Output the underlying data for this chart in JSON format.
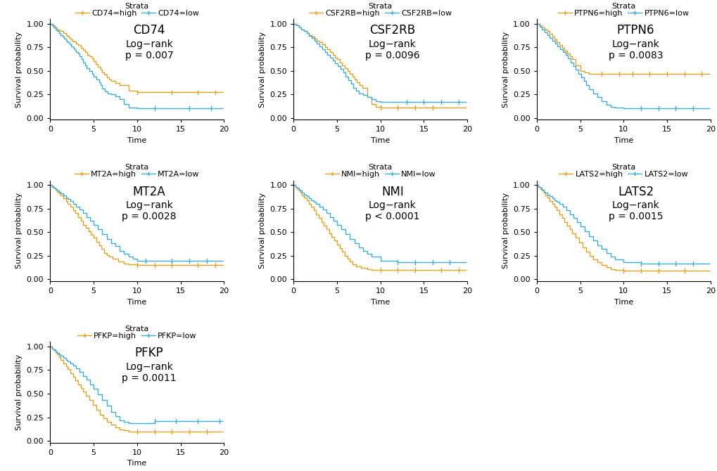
{
  "genes": [
    "CD74",
    "CSF2RB",
    "PTPN6",
    "MT2A",
    "NMI",
    "LATS2",
    "PFKP"
  ],
  "pvalues": [
    "p = 0.007",
    "p = 0.0096",
    "p = 0.0083",
    "p = 0.0028",
    "p < 0.0001",
    "p = 0.0015",
    "p = 0.0011"
  ],
  "color_high": "#E8A020",
  "color_low": "#3AADE0",
  "ylabel": "Survival probability",
  "xlabel": "Time",
  "yticks": [
    0.0,
    0.25,
    0.5,
    0.75,
    1.0
  ],
  "xticks": [
    0,
    5,
    10,
    15,
    20
  ],
  "xlim": [
    0,
    20
  ],
  "ylim": [
    -0.02,
    1.05
  ],
  "title_fontsize": 12,
  "label_fontsize": 8,
  "tick_fontsize": 8,
  "legend_fontsize": 8,
  "annot_fontsize": 10,
  "curves": {
    "CD74": {
      "high_t": [
        0,
        0.3,
        0.5,
        0.8,
        1.0,
        1.2,
        1.5,
        1.8,
        2.0,
        2.2,
        2.5,
        2.7,
        3.0,
        3.2,
        3.5,
        3.8,
        4.0,
        4.3,
        4.5,
        4.8,
        5.0,
        5.2,
        5.5,
        5.8,
        6.0,
        6.2,
        6.5,
        6.8,
        7.0,
        7.5,
        8.0,
        9.0,
        10.0,
        12.0,
        14.0,
        15.0,
        17.0,
        19.0,
        19.9
      ],
      "high_s": [
        1.0,
        0.98,
        0.96,
        0.94,
        0.93,
        0.92,
        0.9,
        0.88,
        0.86,
        0.84,
        0.82,
        0.81,
        0.79,
        0.77,
        0.74,
        0.72,
        0.7,
        0.67,
        0.65,
        0.63,
        0.6,
        0.57,
        0.54,
        0.51,
        0.48,
        0.46,
        0.43,
        0.41,
        0.39,
        0.37,
        0.35,
        0.29,
        0.27,
        0.27,
        0.27,
        0.27,
        0.27,
        0.27,
        0.27
      ],
      "low_t": [
        0,
        0.2,
        0.4,
        0.6,
        0.8,
        1.0,
        1.2,
        1.4,
        1.6,
        1.8,
        2.0,
        2.2,
        2.4,
        2.6,
        2.8,
        3.0,
        3.2,
        3.4,
        3.6,
        3.8,
        4.0,
        4.2,
        4.5,
        4.8,
        5.0,
        5.3,
        5.6,
        5.8,
        6.0,
        6.3,
        6.6,
        7.0,
        7.5,
        8.0,
        8.5,
        9.0,
        10.0,
        12.0,
        14.0,
        16.0,
        18.0,
        19.5,
        19.9
      ],
      "low_s": [
        1.0,
        0.98,
        0.96,
        0.94,
        0.92,
        0.9,
        0.88,
        0.86,
        0.84,
        0.82,
        0.8,
        0.78,
        0.76,
        0.74,
        0.72,
        0.7,
        0.68,
        0.65,
        0.62,
        0.59,
        0.56,
        0.53,
        0.5,
        0.47,
        0.44,
        0.41,
        0.38,
        0.35,
        0.31,
        0.28,
        0.26,
        0.25,
        0.23,
        0.2,
        0.15,
        0.11,
        0.1,
        0.1,
        0.1,
        0.1,
        0.1,
        0.1,
        0.1
      ],
      "high_censor_t": [
        10.0,
        14.0,
        17.0,
        19.0
      ],
      "high_censor_s": [
        0.27,
        0.27,
        0.27,
        0.27
      ],
      "low_censor_t": [
        12.0,
        16.0,
        18.5
      ],
      "low_censor_s": [
        0.1,
        0.1,
        0.1
      ]
    },
    "CSF2RB": {
      "high_t": [
        0,
        0.3,
        0.6,
        0.9,
        1.2,
        1.5,
        1.8,
        2.1,
        2.4,
        2.7,
        3.0,
        3.3,
        3.6,
        3.9,
        4.2,
        4.5,
        4.8,
        5.0,
        5.3,
        5.6,
        5.9,
        6.2,
        6.5,
        6.8,
        7.0,
        7.3,
        7.6,
        7.9,
        8.5,
        9.0,
        9.5,
        10.0,
        12.0,
        14.0,
        16.0,
        18.0,
        19.9
      ],
      "high_s": [
        1.0,
        0.98,
        0.96,
        0.94,
        0.92,
        0.9,
        0.88,
        0.86,
        0.84,
        0.82,
        0.8,
        0.78,
        0.75,
        0.73,
        0.7,
        0.67,
        0.64,
        0.62,
        0.59,
        0.56,
        0.53,
        0.5,
        0.47,
        0.44,
        0.41,
        0.38,
        0.35,
        0.32,
        0.22,
        0.15,
        0.12,
        0.11,
        0.11,
        0.11,
        0.11,
        0.11,
        0.11
      ],
      "low_t": [
        0,
        0.3,
        0.6,
        0.9,
        1.2,
        1.5,
        1.8,
        2.1,
        2.4,
        2.7,
        3.0,
        3.3,
        3.6,
        3.9,
        4.2,
        4.5,
        4.8,
        5.1,
        5.4,
        5.7,
        6.0,
        6.3,
        6.6,
        6.9,
        7.2,
        7.5,
        8.0,
        8.5,
        9.0,
        9.5,
        10.0,
        13.0,
        15.0,
        17.0,
        19.0,
        19.9
      ],
      "low_s": [
        1.0,
        0.98,
        0.96,
        0.94,
        0.92,
        0.9,
        0.87,
        0.85,
        0.82,
        0.79,
        0.76,
        0.73,
        0.7,
        0.67,
        0.64,
        0.61,
        0.58,
        0.55,
        0.52,
        0.48,
        0.44,
        0.4,
        0.36,
        0.32,
        0.29,
        0.26,
        0.24,
        0.22,
        0.2,
        0.18,
        0.17,
        0.17,
        0.17,
        0.17,
        0.17,
        0.17
      ],
      "high_censor_t": [
        10.0,
        12.0,
        14.0,
        16.0
      ],
      "high_censor_s": [
        0.11,
        0.11,
        0.11,
        0.11
      ],
      "low_censor_t": [
        13.0,
        15.0,
        17.0,
        19.0
      ],
      "low_censor_s": [
        0.17,
        0.17,
        0.17,
        0.17
      ]
    },
    "PTPN6": {
      "high_t": [
        0,
        0.3,
        0.6,
        0.9,
        1.2,
        1.5,
        1.8,
        2.0,
        2.3,
        2.6,
        2.9,
        3.2,
        3.5,
        3.8,
        4.1,
        4.5,
        5.0,
        5.5,
        6.0,
        7.0,
        8.0,
        9.0,
        10.0,
        12.0,
        14.0,
        16.0,
        18.0,
        19.9
      ],
      "high_s": [
        1.0,
        0.98,
        0.96,
        0.94,
        0.92,
        0.89,
        0.86,
        0.83,
        0.8,
        0.77,
        0.74,
        0.71,
        0.68,
        0.65,
        0.62,
        0.56,
        0.5,
        0.48,
        0.47,
        0.47,
        0.47,
        0.47,
        0.47,
        0.47,
        0.47,
        0.47,
        0.47,
        0.47
      ],
      "low_t": [
        0,
        0.3,
        0.6,
        0.9,
        1.2,
        1.5,
        1.8,
        2.1,
        2.4,
        2.7,
        3.0,
        3.3,
        3.6,
        3.9,
        4.2,
        4.5,
        4.8,
        5.1,
        5.4,
        5.7,
        6.0,
        6.5,
        7.0,
        7.5,
        8.0,
        8.5,
        9.0,
        10.0,
        12.0,
        14.0,
        16.0,
        18.0,
        19.9
      ],
      "low_s": [
        1.0,
        0.97,
        0.94,
        0.91,
        0.88,
        0.85,
        0.82,
        0.79,
        0.76,
        0.73,
        0.7,
        0.67,
        0.63,
        0.59,
        0.55,
        0.51,
        0.47,
        0.43,
        0.39,
        0.35,
        0.3,
        0.26,
        0.22,
        0.18,
        0.14,
        0.12,
        0.11,
        0.1,
        0.1,
        0.1,
        0.1,
        0.1,
        0.1
      ],
      "high_censor_t": [
        7.5,
        9.5,
        11.0,
        13.0,
        15.0,
        17.0,
        19.0
      ],
      "high_censor_s": [
        0.47,
        0.47,
        0.47,
        0.47,
        0.47,
        0.47,
        0.47
      ],
      "low_censor_t": [
        12.0,
        14.0,
        16.0,
        18.0
      ],
      "low_censor_s": [
        0.1,
        0.1,
        0.1,
        0.1
      ]
    },
    "MT2A": {
      "high_t": [
        0,
        0.2,
        0.4,
        0.6,
        0.8,
        1.0,
        1.2,
        1.5,
        1.8,
        2.0,
        2.3,
        2.6,
        2.9,
        3.2,
        3.5,
        3.8,
        4.1,
        4.4,
        4.7,
        5.0,
        5.3,
        5.6,
        5.9,
        6.2,
        6.5,
        6.8,
        7.2,
        7.8,
        8.5,
        9.0,
        10.0,
        12.0,
        14.0,
        15.0,
        17.0,
        19.0,
        19.9
      ],
      "high_s": [
        1.0,
        0.98,
        0.97,
        0.95,
        0.93,
        0.91,
        0.89,
        0.86,
        0.83,
        0.8,
        0.77,
        0.73,
        0.7,
        0.66,
        0.62,
        0.58,
        0.55,
        0.51,
        0.47,
        0.44,
        0.4,
        0.36,
        0.32,
        0.28,
        0.26,
        0.24,
        0.22,
        0.19,
        0.17,
        0.16,
        0.15,
        0.15,
        0.15,
        0.15,
        0.15,
        0.15,
        0.15
      ],
      "low_t": [
        0,
        0.2,
        0.4,
        0.6,
        0.8,
        1.0,
        1.2,
        1.5,
        1.8,
        2.0,
        2.3,
        2.6,
        3.0,
        3.4,
        3.8,
        4.2,
        4.6,
        5.0,
        5.5,
        6.0,
        6.5,
        7.0,
        7.5,
        8.0,
        8.5,
        9.0,
        9.5,
        10.0,
        12.0,
        14.0,
        15.0,
        17.0,
        19.0,
        19.9
      ],
      "low_s": [
        1.0,
        0.99,
        0.97,
        0.96,
        0.94,
        0.93,
        0.91,
        0.89,
        0.87,
        0.85,
        0.83,
        0.8,
        0.77,
        0.74,
        0.7,
        0.66,
        0.62,
        0.58,
        0.53,
        0.48,
        0.43,
        0.38,
        0.35,
        0.3,
        0.27,
        0.24,
        0.22,
        0.2,
        0.2,
        0.2,
        0.2,
        0.2,
        0.2,
        0.2
      ],
      "high_censor_t": [
        10.0,
        12.0,
        14.0,
        17.0,
        19.0
      ],
      "high_censor_s": [
        0.15,
        0.15,
        0.15,
        0.15,
        0.15
      ],
      "low_censor_t": [
        11.0,
        14.0,
        16.0,
        18.0
      ],
      "low_censor_s": [
        0.2,
        0.2,
        0.2,
        0.2
      ]
    },
    "NMI": {
      "high_t": [
        0,
        0.2,
        0.4,
        0.6,
        0.8,
        1.0,
        1.2,
        1.5,
        1.8,
        2.0,
        2.3,
        2.6,
        2.9,
        3.2,
        3.5,
        3.8,
        4.1,
        4.4,
        4.7,
        5.0,
        5.3,
        5.6,
        5.9,
        6.2,
        6.5,
        6.8,
        7.2,
        7.8,
        8.5,
        9.0,
        10.0,
        12.0,
        14.0,
        15.0,
        17.0,
        19.0,
        19.9
      ],
      "high_s": [
        1.0,
        0.98,
        0.96,
        0.94,
        0.92,
        0.89,
        0.87,
        0.84,
        0.8,
        0.77,
        0.73,
        0.69,
        0.65,
        0.61,
        0.57,
        0.53,
        0.49,
        0.45,
        0.41,
        0.37,
        0.33,
        0.29,
        0.25,
        0.22,
        0.19,
        0.16,
        0.14,
        0.12,
        0.11,
        0.1,
        0.1,
        0.1,
        0.1,
        0.1,
        0.1,
        0.1,
        0.1
      ],
      "low_t": [
        0,
        0.2,
        0.4,
        0.6,
        0.8,
        1.0,
        1.2,
        1.5,
        1.8,
        2.0,
        2.3,
        2.6,
        3.0,
        3.4,
        3.8,
        4.2,
        4.6,
        5.0,
        5.5,
        6.0,
        6.5,
        7.0,
        7.5,
        8.0,
        8.5,
        9.0,
        10.0,
        12.0,
        14.0,
        15.0,
        17.0,
        19.0,
        19.9
      ],
      "low_s": [
        1.0,
        0.98,
        0.97,
        0.95,
        0.94,
        0.92,
        0.9,
        0.88,
        0.86,
        0.84,
        0.82,
        0.8,
        0.77,
        0.74,
        0.7,
        0.66,
        0.62,
        0.58,
        0.53,
        0.48,
        0.43,
        0.38,
        0.34,
        0.3,
        0.27,
        0.24,
        0.2,
        0.18,
        0.18,
        0.18,
        0.18,
        0.18,
        0.18
      ],
      "high_censor_t": [
        10.0,
        12.0,
        14.0,
        17.0,
        19.0
      ],
      "high_censor_s": [
        0.1,
        0.1,
        0.1,
        0.1,
        0.1
      ],
      "low_censor_t": [
        12.0,
        14.0,
        16.0,
        18.0
      ],
      "low_censor_s": [
        0.18,
        0.18,
        0.18,
        0.18
      ]
    },
    "LATS2": {
      "high_t": [
        0,
        0.2,
        0.4,
        0.6,
        0.8,
        1.0,
        1.2,
        1.5,
        1.8,
        2.0,
        2.3,
        2.6,
        2.9,
        3.2,
        3.5,
        3.8,
        4.1,
        4.5,
        4.9,
        5.3,
        5.7,
        6.1,
        6.5,
        7.0,
        7.5,
        8.0,
        8.5,
        9.0,
        10.0,
        12.0,
        14.0,
        15.0,
        17.0,
        19.0,
        19.9
      ],
      "high_s": [
        1.0,
        0.98,
        0.96,
        0.94,
        0.92,
        0.89,
        0.87,
        0.83,
        0.8,
        0.77,
        0.73,
        0.69,
        0.65,
        0.61,
        0.57,
        0.53,
        0.49,
        0.44,
        0.39,
        0.34,
        0.29,
        0.25,
        0.21,
        0.18,
        0.15,
        0.13,
        0.11,
        0.1,
        0.09,
        0.09,
        0.09,
        0.09,
        0.09,
        0.09,
        0.09
      ],
      "low_t": [
        0,
        0.2,
        0.4,
        0.6,
        0.8,
        1.0,
        1.2,
        1.5,
        1.8,
        2.0,
        2.3,
        2.6,
        3.0,
        3.4,
        3.8,
        4.2,
        4.6,
        5.0,
        5.5,
        6.0,
        6.5,
        7.0,
        7.5,
        8.0,
        8.5,
        9.0,
        10.0,
        12.0,
        14.0,
        16.0,
        18.0,
        19.9
      ],
      "low_s": [
        1.0,
        0.98,
        0.97,
        0.95,
        0.93,
        0.92,
        0.9,
        0.88,
        0.86,
        0.84,
        0.82,
        0.8,
        0.77,
        0.73,
        0.69,
        0.65,
        0.61,
        0.56,
        0.51,
        0.46,
        0.41,
        0.36,
        0.32,
        0.28,
        0.24,
        0.21,
        0.18,
        0.17,
        0.17,
        0.17,
        0.17,
        0.17
      ],
      "high_censor_t": [
        10.0,
        12.0,
        14.0,
        17.0
      ],
      "high_censor_s": [
        0.09,
        0.09,
        0.09,
        0.09
      ],
      "low_censor_t": [
        12.0,
        14.0,
        16.0,
        18.0
      ],
      "low_censor_s": [
        0.17,
        0.17,
        0.17,
        0.17
      ]
    },
    "PFKP": {
      "high_t": [
        0,
        0.2,
        0.4,
        0.6,
        0.8,
        1.0,
        1.2,
        1.5,
        1.8,
        2.0,
        2.3,
        2.6,
        2.9,
        3.2,
        3.5,
        3.8,
        4.1,
        4.5,
        4.9,
        5.3,
        5.7,
        6.1,
        6.5,
        7.0,
        7.5,
        8.0,
        8.5,
        9.0,
        10.0,
        12.0,
        14.0,
        16.0,
        18.0,
        19.9
      ],
      "high_s": [
        1.0,
        0.98,
        0.96,
        0.94,
        0.92,
        0.89,
        0.86,
        0.82,
        0.79,
        0.76,
        0.72,
        0.68,
        0.64,
        0.6,
        0.56,
        0.52,
        0.48,
        0.43,
        0.38,
        0.33,
        0.28,
        0.24,
        0.2,
        0.17,
        0.14,
        0.12,
        0.11,
        0.1,
        0.1,
        0.1,
        0.1,
        0.1,
        0.1,
        0.1
      ],
      "low_t": [
        0,
        0.2,
        0.4,
        0.6,
        0.8,
        1.0,
        1.2,
        1.5,
        1.8,
        2.0,
        2.3,
        2.6,
        3.0,
        3.4,
        3.8,
        4.2,
        4.6,
        5.0,
        5.5,
        6.0,
        6.5,
        7.0,
        7.5,
        8.0,
        8.5,
        9.0,
        10.0,
        12.0,
        14.0,
        16.0,
        18.0,
        19.5,
        19.9
      ],
      "low_s": [
        1.0,
        0.98,
        0.97,
        0.95,
        0.93,
        0.92,
        0.9,
        0.88,
        0.86,
        0.84,
        0.82,
        0.8,
        0.77,
        0.73,
        0.69,
        0.65,
        0.6,
        0.55,
        0.49,
        0.43,
        0.37,
        0.31,
        0.26,
        0.22,
        0.2,
        0.19,
        0.19,
        0.21,
        0.21,
        0.21,
        0.21,
        0.21,
        0.21
      ],
      "high_censor_t": [
        10.0,
        12.0,
        14.0,
        16.0,
        18.0
      ],
      "high_censor_s": [
        0.1,
        0.1,
        0.1,
        0.1,
        0.1
      ],
      "low_censor_t": [
        12.0,
        14.5,
        17.0,
        19.5
      ],
      "low_censor_s": [
        0.21,
        0.21,
        0.21,
        0.21
      ]
    }
  }
}
